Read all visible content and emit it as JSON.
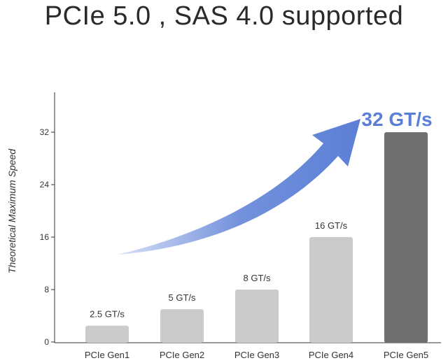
{
  "chart_data": {
    "type": "bar",
    "title": "PCIe 5.0 , SAS 4.0 supported",
    "ylabel": "Theoretical Maximum Speed",
    "xlabel": "",
    "ylim": [
      0,
      37
    ],
    "yticks": [
      0,
      8,
      16,
      24,
      32
    ],
    "categories": [
      "PCIe Gen1",
      "PCIe Gen2",
      "PCIe Gen3",
      "PCIe Gen4",
      "PCIe Gen5"
    ],
    "values": [
      2.5,
      5,
      8,
      16,
      32
    ],
    "data_labels": [
      "2.5 GT/s",
      "5 GT/s",
      "8 GT/s",
      "16 GT/s",
      "32 GT/s"
    ],
    "bar_colors": [
      "#cbcbcb",
      "#cbcbcb",
      "#cbcbcb",
      "#cbcbcb",
      "#6f6f6f"
    ],
    "highlight_label_color": "#5b7fd6",
    "arrow_color": "#5b7fd6",
    "grid": false
  }
}
